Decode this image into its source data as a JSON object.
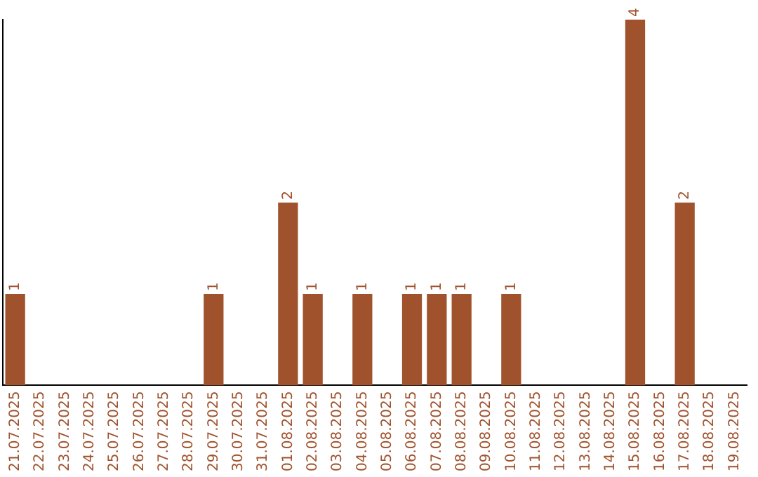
{
  "chart_data": {
    "type": "bar",
    "categories": [
      "21.07.2025",
      "22.07.2025",
      "23.07.2025",
      "24.07.2025",
      "25.07.2025",
      "26.07.2025",
      "27.07.2025",
      "28.07.2025",
      "29.07.2025",
      "30.07.2025",
      "31.07.2025",
      "01.08.2025",
      "02.08.2025",
      "03.08.2025",
      "04.08.2025",
      "05.08.2025",
      "06.08.2025",
      "07.08.2025",
      "08.08.2025",
      "09.08.2025",
      "10.08.2025",
      "11.08.2025",
      "12.08.2025",
      "13.08.2025",
      "14.08.2025",
      "15.08.2025",
      "16.08.2025",
      "17.08.2025",
      "18.08.2025",
      "19.08.2025"
    ],
    "values": [
      1,
      0,
      0,
      0,
      0,
      0,
      0,
      0,
      1,
      0,
      0,
      2,
      1,
      0,
      1,
      0,
      1,
      1,
      1,
      0,
      1,
      0,
      0,
      0,
      0,
      4,
      0,
      2,
      0,
      0
    ],
    "value_labels": [
      "1",
      null,
      null,
      null,
      null,
      null,
      null,
      null,
      "1",
      null,
      null,
      "2",
      "1",
      null,
      "1",
      null,
      "1",
      "1",
      "1",
      null,
      "1",
      null,
      null,
      null,
      null,
      "4",
      null,
      "2",
      null,
      null
    ],
    "color": "#a0522d",
    "ylim": [
      0,
      4
    ],
    "tick_labels": "x",
    "grid": false,
    "legend": false
  }
}
